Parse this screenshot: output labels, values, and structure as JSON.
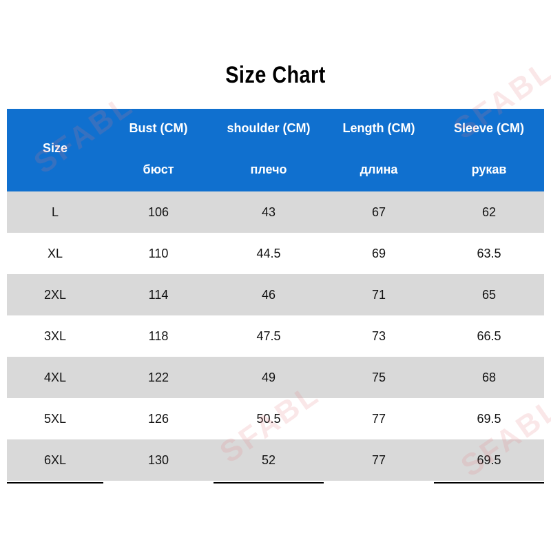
{
  "title": "Size Chart",
  "watermark": "SFABL",
  "table": {
    "header": [
      {
        "label": "Size"
      },
      {
        "label": "Bust (CM)",
        "ru": "бюст"
      },
      {
        "label": "shoulder (CM)",
        "ru": "плечо"
      },
      {
        "label": "Length (CM)",
        "ru": "длина"
      },
      {
        "label": "Sleeve (CM)",
        "ru": "рукав"
      }
    ],
    "rows": [
      [
        "L",
        "106",
        "43",
        "67",
        "62"
      ],
      [
        "XL",
        "110",
        "44.5",
        "69",
        "63.5"
      ],
      [
        "2XL",
        "114",
        "46",
        "71",
        "65"
      ],
      [
        "3XL",
        "118",
        "47.5",
        "73",
        "66.5"
      ],
      [
        "4XL",
        "122",
        "49",
        "75",
        "68"
      ],
      [
        "5XL",
        "126",
        "50.5",
        "77",
        "69.5"
      ],
      [
        "6XL",
        "130",
        "52",
        "77",
        "69.5"
      ]
    ]
  }
}
